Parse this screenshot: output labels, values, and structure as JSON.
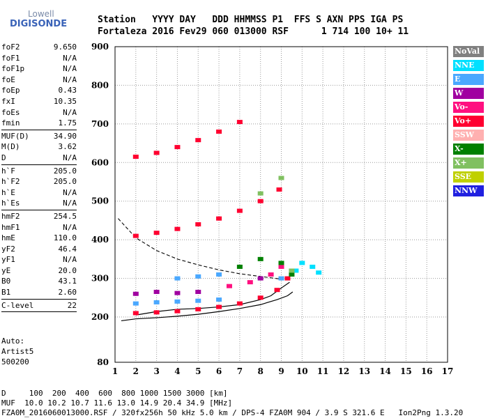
{
  "logo": {
    "line1": "Lowell",
    "line2": "DIGISONDE"
  },
  "header": {
    "line1": "Station   YYYY DAY   DDD HHMMSS P1  FFS S AXN PPS IGA PS",
    "line2": "Fortaleza 2016 Fev29 060 013000 RSF      1 714 100 10+ 11"
  },
  "params": [
    {
      "label": "foF2",
      "value": "9.650"
    },
    {
      "label": "foF1",
      "value": "N/A"
    },
    {
      "label": "foF1p",
      "value": "N/A"
    },
    {
      "label": "foE",
      "value": "N/A"
    },
    {
      "label": "foEp",
      "value": "0.43"
    },
    {
      "label": "fxI",
      "value": "10.35"
    },
    {
      "label": "foEs",
      "value": "N/A"
    },
    {
      "label": "fmin",
      "value": "1.75"
    },
    {
      "sep": true
    },
    {
      "label": "MUF(D)",
      "value": "34.90"
    },
    {
      "label": "M(D)",
      "value": "3.62"
    },
    {
      "label": "D",
      "value": "N/A"
    },
    {
      "sep": true
    },
    {
      "label": "h`F",
      "value": "205.0"
    },
    {
      "label": "h`F2",
      "value": "205.0"
    },
    {
      "label": "h`E",
      "value": "N/A"
    },
    {
      "label": "h`Es",
      "value": "N/A"
    },
    {
      "sep": true
    },
    {
      "label": "hmF2",
      "value": "254.5"
    },
    {
      "label": "hmF1",
      "value": "N/A"
    },
    {
      "label": "hmE",
      "value": "110.0"
    },
    {
      "label": "yF2",
      "value": "46.4"
    },
    {
      "label": "yF1",
      "value": "N/A"
    },
    {
      "label": "yE",
      "value": "20.0"
    },
    {
      "label": "B0",
      "value": "43.1"
    },
    {
      "label": "B1",
      "value": "2.60"
    },
    {
      "sep": true
    },
    {
      "label": "C-level",
      "value": "22"
    },
    {
      "sep": true
    }
  ],
  "auto": {
    "line1": "Auto:",
    "line2": "Artist5",
    "line3": "500200"
  },
  "legend": [
    {
      "label": "NoVal",
      "color": "#808080"
    },
    {
      "label": "NNE",
      "color": "#00e0ff"
    },
    {
      "label": "E",
      "color": "#4aa8ff"
    },
    {
      "label": "W",
      "color": "#a000a0"
    },
    {
      "label": "Vo-",
      "color": "#ff1080"
    },
    {
      "label": "Vo+",
      "color": "#ff0030"
    },
    {
      "label": "SSW",
      "color": "#ffb0b0"
    },
    {
      "label": "X-",
      "color": "#008000"
    },
    {
      "label": "X+",
      "color": "#80c060"
    },
    {
      "label": "SSE",
      "color": "#c0d000"
    },
    {
      "label": "NNW",
      "color": "#2020e0"
    }
  ],
  "footer": {
    "line1": "D     100  200  400  600  800 1000 1500 3000 [km]",
    "line2": "MUF  10.0 10.2 10.7 11.6 13.0 14.9 20.4 34.9 [MHz]",
    "line3": "FZA0M_2016060013000.RSF / 320fx256h 50 kHz 5.0 km / DPS-4 FZA0M 904 / 3.9 S 321.6 E   Ion2Png 1.3.20"
  },
  "chart_data": {
    "type": "scatter",
    "x_ticks": [
      "1",
      "2",
      "3",
      "4",
      "5",
      "6",
      "7",
      "8",
      "9",
      "10",
      "11",
      "12",
      "13",
      "14",
      "15",
      "16",
      "17"
    ],
    "y_ticks": [
      "80",
      "200",
      "300",
      "400",
      "500",
      "600",
      "700",
      "800",
      "900"
    ],
    "xlim": [
      1,
      17
    ],
    "ylim": [
      80,
      900
    ],
    "grid": true,
    "series": [
      {
        "name": "Vo+",
        "color": "#ff0030",
        "points": [
          [
            2.0,
            210
          ],
          [
            3.0,
            212
          ],
          [
            4.0,
            215
          ],
          [
            5.0,
            220
          ],
          [
            6.0,
            226
          ],
          [
            7.0,
            235
          ],
          [
            8.0,
            250
          ],
          [
            8.8,
            270
          ],
          [
            9.3,
            300
          ],
          [
            2.0,
            410
          ],
          [
            3.0,
            418
          ],
          [
            4.0,
            428
          ],
          [
            5.0,
            440
          ],
          [
            6.0,
            455
          ],
          [
            7.0,
            475
          ],
          [
            8.0,
            500
          ],
          [
            8.9,
            530
          ],
          [
            2.0,
            615
          ],
          [
            3.0,
            625
          ],
          [
            4.0,
            640
          ],
          [
            5.0,
            658
          ],
          [
            6.0,
            680
          ],
          [
            7.0,
            705
          ]
        ]
      },
      {
        "name": "E",
        "color": "#4aa8ff",
        "points": [
          [
            2.0,
            235
          ],
          [
            3.0,
            238
          ],
          [
            4.0,
            240
          ],
          [
            5.0,
            242
          ],
          [
            6.0,
            245
          ],
          [
            4.0,
            300
          ],
          [
            5.0,
            305
          ],
          [
            6.0,
            310
          ],
          [
            9.0,
            300
          ]
        ]
      },
      {
        "name": "NNE",
        "color": "#00e0ff",
        "points": [
          [
            9.7,
            320
          ],
          [
            10.0,
            340
          ],
          [
            10.5,
            330
          ],
          [
            10.8,
            315
          ]
        ]
      },
      {
        "name": "W",
        "color": "#a000a0",
        "points": [
          [
            2.0,
            260
          ],
          [
            3.0,
            265
          ],
          [
            4.0,
            262
          ],
          [
            5.0,
            265
          ],
          [
            8.0,
            300
          ]
        ]
      },
      {
        "name": "Vo-",
        "color": "#ff1080",
        "points": [
          [
            6.5,
            280
          ],
          [
            7.5,
            290
          ],
          [
            8.5,
            310
          ],
          [
            9.0,
            330
          ]
        ]
      },
      {
        "name": "X-",
        "color": "#008000",
        "points": [
          [
            7.0,
            330
          ],
          [
            8.0,
            350
          ],
          [
            9.0,
            340
          ],
          [
            9.5,
            310
          ]
        ]
      },
      {
        "name": "X+",
        "color": "#80c060",
        "points": [
          [
            8.0,
            520
          ],
          [
            9.0,
            560
          ],
          [
            9.5,
            320
          ]
        ]
      }
    ]
  }
}
